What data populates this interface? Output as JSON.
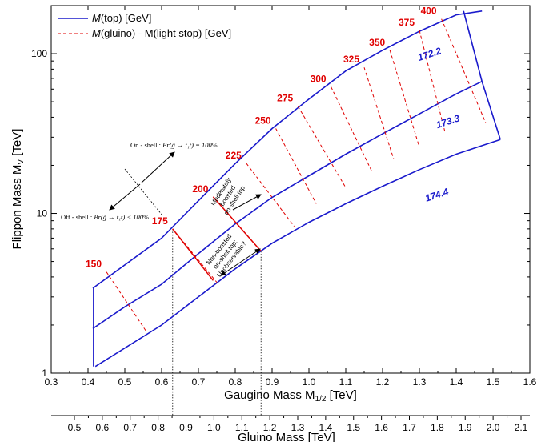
{
  "chart_data": {
    "type": "line",
    "x_axis": {
      "label_main": "Gaugino Mass M",
      "label_sub": "1/2",
      "label_unit": " [TeV]",
      "range": [
        0.3,
        1.6
      ],
      "ticks": [
        "0.3",
        "0.4",
        "0.5",
        "0.6",
        "0.7",
        "0.8",
        "0.9",
        "1.0",
        "1.1",
        "1.2",
        "1.3",
        "1.4",
        "1.5",
        "1.6"
      ]
    },
    "x2_axis": {
      "label": "Gluino Mass [TeV]",
      "ticks": [
        "0.5",
        "0.6",
        "0.7",
        "0.8",
        "0.9",
        "1.0",
        "1.1",
        "1.2",
        "1.3",
        "1.4",
        "1.5",
        "1.6",
        "1.7",
        "1.8",
        "1.9",
        "2.0",
        "2.1"
      ]
    },
    "y_axis": {
      "label_main": "Flippon Mass M",
      "label_sub": "V",
      "label_unit": "  [TeV]",
      "scale": "log",
      "range": [
        1,
        200
      ],
      "tick_labels": [
        "1",
        "10",
        "100"
      ]
    },
    "legend": {
      "placement": "top-left",
      "entries": [
        {
          "mtxt": "M",
          "rest": "(top) [GeV]",
          "style": "solid",
          "color": "#1a1acc"
        },
        {
          "mtxt": "M",
          "rest": "(gluino) - M(light stop) [GeV]",
          "style": "dashed",
          "color": "#e00000"
        }
      ]
    },
    "series": [
      {
        "name": "172.2",
        "x": [
          0.413,
          0.5,
          0.6,
          0.7,
          0.8,
          0.9,
          1.0,
          1.1,
          1.2,
          1.3,
          1.4,
          1.47
        ],
        "y": [
          1.9,
          2.6,
          3.6,
          5.6,
          8.6,
          12.6,
          17.2,
          23.5,
          31.5,
          42,
          56,
          67
        ]
      },
      {
        "name": "173.3",
        "x": [
          0.413,
          0.6,
          0.7,
          0.8,
          0.9,
          1.0,
          1.1,
          1.2,
          1.3,
          1.4,
          1.47
        ],
        "y": [
          3.4,
          7.0,
          12.0,
          20.5,
          34,
          52,
          78,
          105,
          138,
          175,
          185
        ]
      },
      {
        "name": "174.4",
        "x": [
          0.42,
          0.6,
          0.7,
          0.8,
          0.9,
          1.0,
          1.1,
          1.2,
          1.3,
          1.4,
          1.52
        ],
        "y": [
          1.1,
          2.0,
          3.0,
          4.5,
          6.5,
          8.8,
          11.5,
          14.8,
          18.8,
          23.5,
          29
        ]
      }
    ],
    "top_mass_labels": [
      "172.2",
      "173.3",
      "174.4"
    ],
    "dashed_contours": [
      {
        "label": "150",
        "x": [
          0.45,
          0.56
        ],
        "y": [
          4.3,
          1.8
        ]
      },
      {
        "label": "175",
        "x": [
          0.63,
          0.75
        ],
        "y": [
          8.0,
          3.7
        ]
      },
      {
        "label": "200",
        "x": [
          0.74,
          0.87
        ],
        "y": [
          12.7,
          5.8
        ]
      },
      {
        "label": "225",
        "x": [
          0.83,
          0.96
        ],
        "y": [
          20.6,
          8.3
        ]
      },
      {
        "label": "250",
        "x": [
          0.91,
          1.02
        ],
        "y": [
          34,
          11.5
        ]
      },
      {
        "label": "275",
        "x": [
          0.97,
          1.1
        ],
        "y": [
          47,
          14.5
        ]
      },
      {
        "label": "300",
        "x": [
          1.06,
          1.17
        ],
        "y": [
          62,
          18.5
        ]
      },
      {
        "label": "325",
        "x": [
          1.15,
          1.23
        ],
        "y": [
          82,
          22
        ]
      },
      {
        "label": "350",
        "x": [
          1.22,
          1.3
        ],
        "y": [
          105,
          26
        ]
      },
      {
        "label": "375",
        "x": [
          1.3,
          1.37
        ],
        "y": [
          140,
          32
        ]
      },
      {
        "label": "400",
        "x": [
          1.36,
          1.48
        ],
        "y": [
          165,
          37
        ]
      }
    ],
    "solid_segments_red": [
      {
        "label": "175",
        "x": [
          0.63,
          0.74
        ],
        "y": [
          8.0,
          3.8
        ]
      },
      {
        "label": "200",
        "x": [
          0.74,
          0.87
        ],
        "y": [
          12.7,
          5.8
        ]
      }
    ],
    "vertical_guides_x": [
      0.63,
      0.87
    ],
    "annotations": {
      "region_moderately": [
        "Moderately",
        "boosted",
        "on-shell top"
      ],
      "region_nonboosted": [
        "Non-boosted",
        "on-shell top:",
        "Unobservable?"
      ],
      "on_shell_prefix": "On - shell : ",
      "on_shell_formula": "Br(g̃ → t̃₁t) = 100%",
      "off_shell_prefix": "Off - shell : ",
      "off_shell_formula": "Br(g̃ → t̃₁t) < 100%"
    }
  }
}
